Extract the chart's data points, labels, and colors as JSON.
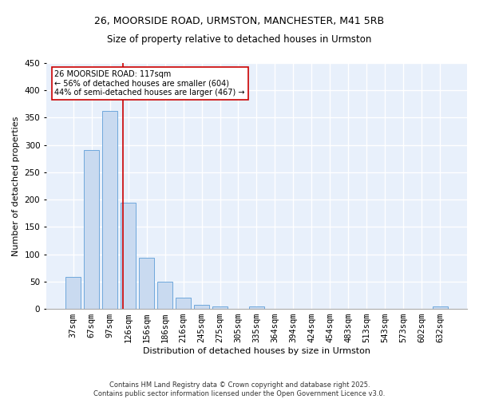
{
  "title1": "26, MOORSIDE ROAD, URMSTON, MANCHESTER, M41 5RB",
  "title2": "Size of property relative to detached houses in Urmston",
  "xlabel": "Distribution of detached houses by size in Urmston",
  "ylabel": "Number of detached properties",
  "footer": "Contains HM Land Registry data © Crown copyright and database right 2025.\nContains public sector information licensed under the Open Government Licence v3.0.",
  "bar_labels": [
    "37sqm",
    "67sqm",
    "97sqm",
    "126sqm",
    "156sqm",
    "186sqm",
    "216sqm",
    "245sqm",
    "275sqm",
    "305sqm",
    "335sqm",
    "364sqm",
    "394sqm",
    "424sqm",
    "454sqm",
    "483sqm",
    "513sqm",
    "543sqm",
    "573sqm",
    "602sqm",
    "632sqm"
  ],
  "bar_values": [
    58,
    291,
    362,
    195,
    93,
    50,
    20,
    8,
    5,
    0,
    4,
    0,
    0,
    0,
    0,
    0,
    0,
    0,
    0,
    0,
    4
  ],
  "bar_color": "#c9daf0",
  "bar_edge_color": "#6fa8dc",
  "vline_x_index": 2.72,
  "vline_color": "#cc0000",
  "annotation_text": "26 MOORSIDE ROAD: 117sqm\n← 56% of detached houses are smaller (604)\n44% of semi-detached houses are larger (467) →",
  "annotation_fontsize": 7,
  "annotation_box_color": "#cc0000",
  "ylim": [
    0,
    450
  ],
  "yticks": [
    0,
    50,
    100,
    150,
    200,
    250,
    300,
    350,
    400,
    450
  ],
  "background_color": "#dce6f5",
  "plot_bg_color": "#e8f0fb",
  "grid_color": "#ffffff",
  "title_fontsize": 9,
  "subtitle_fontsize": 8.5,
  "xlabel_fontsize": 8,
  "ylabel_fontsize": 8,
  "tick_fontsize": 7.5
}
